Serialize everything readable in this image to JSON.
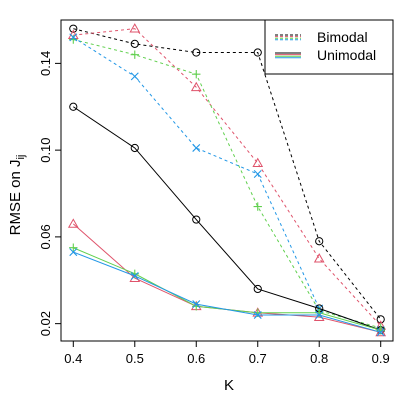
{
  "chart_data": {
    "type": "line",
    "title": "",
    "xlabel": "K",
    "ylabel_main": "RMSE on J",
    "ylabel_subscript": "ij",
    "xlim": [
      0.4,
      0.9
    ],
    "ylim": [
      0.012,
      0.16
    ],
    "x_ticks": [
      "0.4",
      "0.5",
      "0.6",
      "0.7",
      "0.8",
      "0.9"
    ],
    "y_ticks": [
      "0.02",
      "0.06",
      "0.10",
      "0.14"
    ],
    "grid": false,
    "legend": {
      "position": "top-right",
      "entries": [
        {
          "label": "Bimodal",
          "linestyle": "dashed"
        },
        {
          "label": "Unimodal",
          "linestyle": "solid"
        }
      ]
    },
    "x": [
      0.4,
      0.5,
      0.6,
      0.7,
      0.8,
      0.9
    ],
    "series": [
      {
        "group": "Bimodal",
        "color": "#000000",
        "marker": "circle",
        "linestyle": "dashed",
        "values": [
          0.156,
          0.149,
          0.145,
          0.145,
          0.058,
          0.022
        ]
      },
      {
        "group": "Bimodal",
        "color": "#df536b",
        "marker": "triangle",
        "linestyle": "dashed",
        "values": [
          0.153,
          0.156,
          0.129,
          0.094,
          0.05,
          0.019
        ]
      },
      {
        "group": "Bimodal",
        "color": "#61d04f",
        "marker": "plus",
        "linestyle": "dashed",
        "values": [
          0.151,
          0.144,
          0.135,
          0.074,
          0.026,
          0.018
        ]
      },
      {
        "group": "Bimodal",
        "color": "#2297e6",
        "marker": "cross",
        "linestyle": "dashed",
        "values": [
          0.152,
          0.134,
          0.101,
          0.089,
          0.027,
          0.017
        ]
      },
      {
        "group": "Unimodal",
        "color": "#000000",
        "marker": "circle",
        "linestyle": "solid",
        "values": [
          0.12,
          0.101,
          0.068,
          0.036,
          0.027,
          0.017
        ]
      },
      {
        "group": "Unimodal",
        "color": "#df536b",
        "marker": "triangle",
        "linestyle": "solid",
        "values": [
          0.066,
          0.041,
          0.028,
          0.025,
          0.023,
          0.016
        ]
      },
      {
        "group": "Unimodal",
        "color": "#61d04f",
        "marker": "plus",
        "linestyle": "solid",
        "values": [
          0.055,
          0.043,
          0.028,
          0.025,
          0.025,
          0.017
        ]
      },
      {
        "group": "Unimodal",
        "color": "#2297e6",
        "marker": "cross",
        "linestyle": "solid",
        "values": [
          0.053,
          0.042,
          0.029,
          0.024,
          0.024,
          0.016
        ]
      }
    ]
  }
}
